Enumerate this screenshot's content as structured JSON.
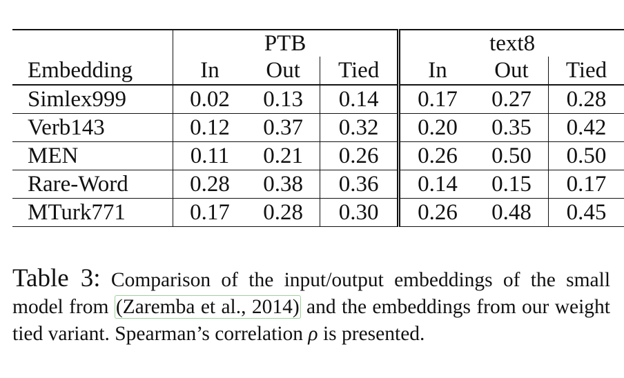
{
  "table": {
    "groups": [
      "PTB",
      "text8"
    ],
    "header": [
      "Embedding",
      "In",
      "Out",
      "Tied",
      "In",
      "Out",
      "Tied"
    ],
    "rows": [
      [
        "Simlex999",
        "0.02",
        "0.13",
        "0.14",
        "0.17",
        "0.27",
        "0.28"
      ],
      [
        "Verb143",
        "0.12",
        "0.37",
        "0.32",
        "0.20",
        "0.35",
        "0.42"
      ],
      [
        "MEN",
        "0.11",
        "0.21",
        "0.26",
        "0.26",
        "0.50",
        "0.50"
      ],
      [
        "Rare-Word",
        "0.28",
        "0.38",
        "0.36",
        "0.14",
        "0.15",
        "0.17"
      ],
      [
        "MTurk771",
        "0.17",
        "0.28",
        "0.30",
        "0.26",
        "0.48",
        "0.45"
      ]
    ]
  },
  "caption": {
    "label": "Table 3:",
    "text_before": "Comparison of the input/output embeddings of the small model from",
    "citation": "(Zaremba et al., 2014)",
    "text_middle": "and the embeddings from our weight tied variant. Spearman’s correlation",
    "symbol": "ρ",
    "text_after": "is presented."
  },
  "colors": {
    "text": "#111111",
    "citation_border": "#9ad19a"
  }
}
